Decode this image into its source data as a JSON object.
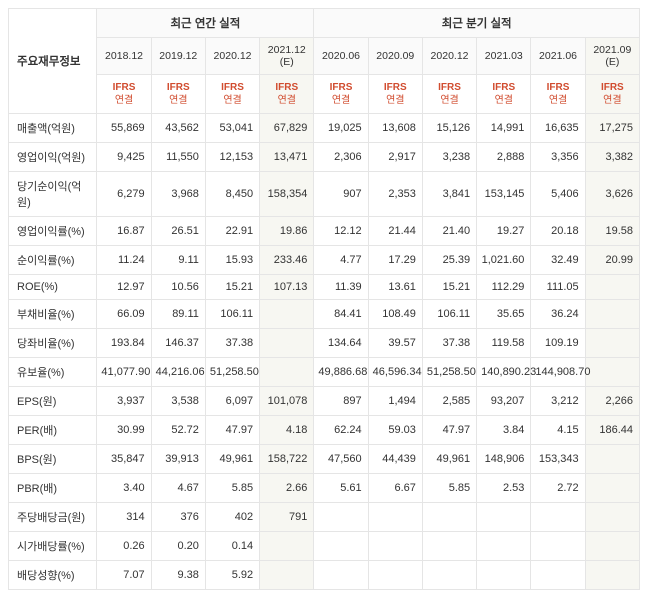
{
  "header": {
    "main_label": "주요재무정보",
    "group_annual": "최근 연간 실적",
    "group_quarter": "최근 분기 실적",
    "ifrs_line1": "IFRS",
    "ifrs_line2": "연결",
    "periods_annual": [
      "2018.12",
      "2019.12",
      "2020.12",
      "2021.12 (E)"
    ],
    "periods_quarter": [
      "2020.06",
      "2020.09",
      "2020.12",
      "2021.03",
      "2021.06",
      "2021.09 (E)"
    ]
  },
  "colors": {
    "border": "#e5e5e5",
    "accent": "#d14c2f",
    "est_bg": "#f7f7f2",
    "header_bg": "#fafafa",
    "text": "#333333"
  },
  "rows": [
    {
      "label": "매출액(억원)",
      "a": [
        "55,869",
        "43,562",
        "53,041",
        "67,829"
      ],
      "q": [
        "19,025",
        "13,608",
        "15,126",
        "14,991",
        "16,635",
        "17,275"
      ]
    },
    {
      "label": "영업이익(억원)",
      "a": [
        "9,425",
        "11,550",
        "12,153",
        "13,471"
      ],
      "q": [
        "2,306",
        "2,917",
        "3,238",
        "2,888",
        "3,356",
        "3,382"
      ]
    },
    {
      "label": "당기순이익(억원)",
      "a": [
        "6,279",
        "3,968",
        "8,450",
        "158,354"
      ],
      "q": [
        "907",
        "2,353",
        "3,841",
        "153,145",
        "5,406",
        "3,626"
      ]
    },
    {
      "label": "영업이익률(%)",
      "a": [
        "16.87",
        "26.51",
        "22.91",
        "19.86"
      ],
      "q": [
        "12.12",
        "21.44",
        "21.40",
        "19.27",
        "20.18",
        "19.58"
      ]
    },
    {
      "label": "순이익률(%)",
      "a": [
        "11.24",
        "9.11",
        "15.93",
        "233.46"
      ],
      "q": [
        "4.77",
        "17.29",
        "25.39",
        "1,021.60",
        "32.49",
        "20.99"
      ]
    },
    {
      "label": "ROE(%)",
      "a": [
        "12.97",
        "10.56",
        "15.21",
        "107.13"
      ],
      "q": [
        "11.39",
        "13.61",
        "15.21",
        "112.29",
        "111.05",
        ""
      ]
    },
    {
      "label": "부채비율(%)",
      "a": [
        "66.09",
        "89.11",
        "106.11",
        ""
      ],
      "q": [
        "84.41",
        "108.49",
        "106.11",
        "35.65",
        "36.24",
        ""
      ]
    },
    {
      "label": "당좌비율(%)",
      "a": [
        "193.84",
        "146.37",
        "37.38",
        ""
      ],
      "q": [
        "134.64",
        "39.57",
        "37.38",
        "119.58",
        "109.19",
        ""
      ]
    },
    {
      "label": "유보율(%)",
      "a": [
        "41,077.90",
        "44,216.06",
        "51,258.50",
        ""
      ],
      "q": [
        "49,886.68",
        "46,596.34",
        "51,258.50",
        "140,890.23",
        "144,908.70",
        ""
      ]
    },
    {
      "label": "EPS(원)",
      "a": [
        "3,937",
        "3,538",
        "6,097",
        "101,078"
      ],
      "q": [
        "897",
        "1,494",
        "2,585",
        "93,207",
        "3,212",
        "2,266"
      ]
    },
    {
      "label": "PER(배)",
      "a": [
        "30.99",
        "52.72",
        "47.97",
        "4.18"
      ],
      "q": [
        "62.24",
        "59.03",
        "47.97",
        "3.84",
        "4.15",
        "186.44"
      ]
    },
    {
      "label": "BPS(원)",
      "a": [
        "35,847",
        "39,913",
        "49,961",
        "158,722"
      ],
      "q": [
        "47,560",
        "44,439",
        "49,961",
        "148,906",
        "153,343",
        ""
      ]
    },
    {
      "label": "PBR(배)",
      "a": [
        "3.40",
        "4.67",
        "5.85",
        "2.66"
      ],
      "q": [
        "5.61",
        "6.67",
        "5.85",
        "2.53",
        "2.72",
        ""
      ]
    },
    {
      "label": "주당배당금(원)",
      "a": [
        "314",
        "376",
        "402",
        "791"
      ],
      "q": [
        "",
        "",
        "",
        "",
        "",
        ""
      ]
    },
    {
      "label": "시가배당률(%)",
      "a": [
        "0.26",
        "0.20",
        "0.14",
        ""
      ],
      "q": [
        "",
        "",
        "",
        "",
        "",
        ""
      ]
    },
    {
      "label": "배당성향(%)",
      "a": [
        "7.07",
        "9.38",
        "5.92",
        ""
      ],
      "q": [
        "",
        "",
        "",
        "",
        "",
        ""
      ]
    }
  ]
}
